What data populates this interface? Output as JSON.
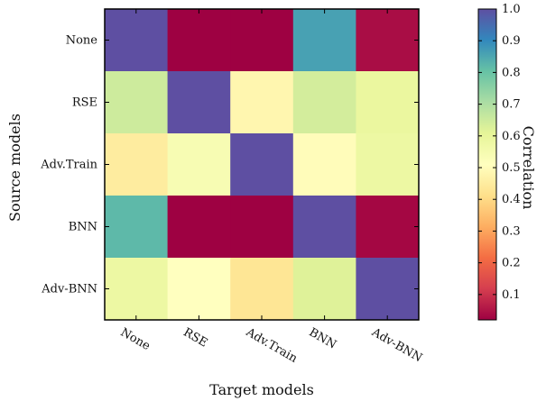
{
  "chart_data": {
    "type": "heatmap",
    "title": "",
    "xlabel": "Target models",
    "ylabel": "Source models",
    "x_categories": [
      "None",
      "RSE",
      "Adv.Train",
      "BNN",
      "Adv-BNN"
    ],
    "y_categories": [
      "None",
      "RSE",
      "Adv.Train",
      "BNN",
      "Adv-BNN"
    ],
    "values": [
      [
        1.0,
        0.02,
        0.02,
        0.86,
        0.04
      ],
      [
        0.65,
        1.0,
        0.48,
        0.64,
        0.59
      ],
      [
        0.45,
        0.54,
        1.0,
        0.5,
        0.58
      ],
      [
        0.82,
        0.02,
        0.02,
        1.0,
        0.03
      ],
      [
        0.58,
        0.51,
        0.43,
        0.62,
        1.0
      ]
    ],
    "colorbar": {
      "label": "Correlation",
      "range": [
        0.02,
        1.0
      ],
      "ticks": [
        0.1,
        0.2,
        0.3,
        0.4,
        0.5,
        0.6,
        0.7,
        0.8,
        0.9,
        1.0
      ],
      "tick_labels": [
        "0.1",
        "0.2",
        "0.3",
        "0.4",
        "0.5",
        "0.6",
        "0.7",
        "0.8",
        "0.9",
        "1.0"
      ],
      "colormap": "Spectral",
      "colormap_stops": [
        "#9e0142",
        "#d53e4f",
        "#f46d43",
        "#fdae61",
        "#fee08b",
        "#ffffbf",
        "#e6f598",
        "#abdda4",
        "#66c2a5",
        "#3288bd",
        "#5e4fa2"
      ]
    },
    "grid": false
  }
}
